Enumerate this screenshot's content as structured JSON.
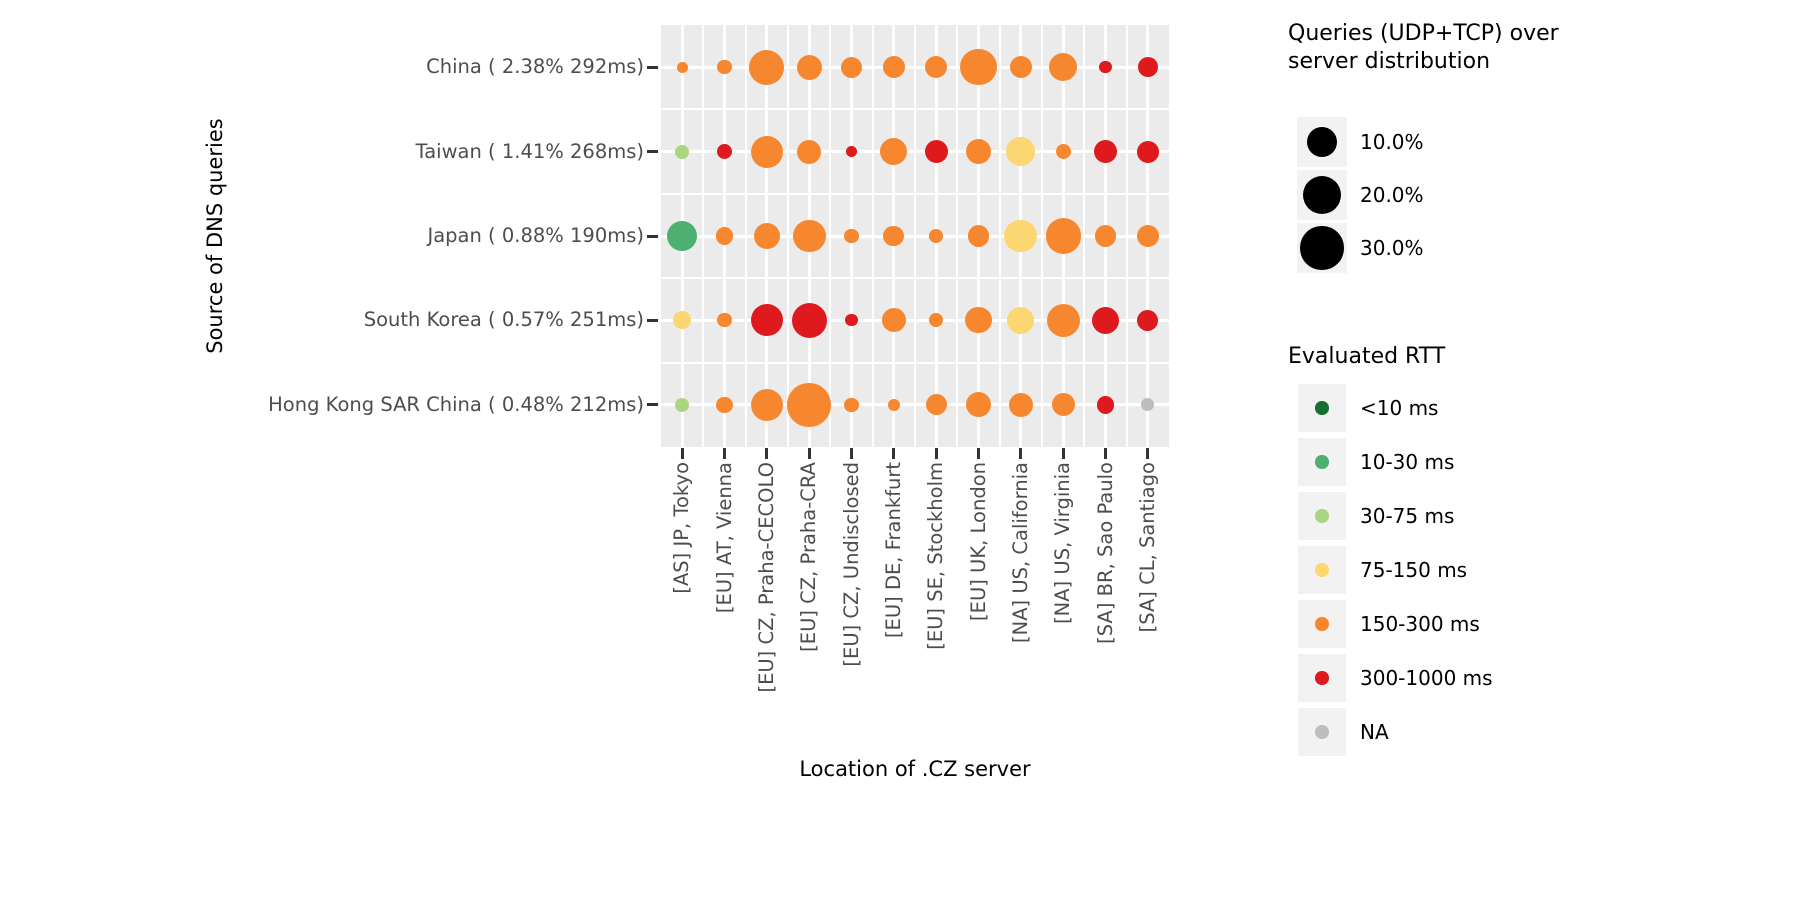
{
  "y_axis": {
    "title": "Source of DNS queries"
  },
  "x_axis": {
    "title": "Location of .CZ server"
  },
  "legend_size": {
    "title_line1": "Queries (UDP+TCP) over",
    "title_line2": "server distribution",
    "items": [
      {
        "label": "10.0%",
        "pct": 10
      },
      {
        "label": "20.0%",
        "pct": 20
      },
      {
        "label": "30.0%",
        "pct": 30
      }
    ]
  },
  "legend_rtt": {
    "title": "Evaluated RTT",
    "items": [
      {
        "label": "<10 ms",
        "bucket": "<10"
      },
      {
        "label": "10-30 ms",
        "bucket": "10-30"
      },
      {
        "label": "30-75 ms",
        "bucket": "30-75"
      },
      {
        "label": "75-150 ms",
        "bucket": "75-150"
      },
      {
        "label": "150-300 ms",
        "bucket": "150-300"
      },
      {
        "label": "300-1000 ms",
        "bucket": "300-1000"
      },
      {
        "label": "NA",
        "bucket": "NA"
      }
    ]
  },
  "colors": {
    "panel_bg": "#EBEBEB",
    "grid": "#FFFFFF",
    "tick": "#333333",
    "axis_text": "#4D4D4D",
    "legend_key_bg": "#F2F2F2",
    "rtt_buckets": {
      "<10": "#15702E",
      "10-30": "#4DAF70",
      "30-75": "#A9D680",
      "75-150": "#FCD671",
      "150-300": "#F7872F",
      "300-1000": "#DE1A1E",
      "NA": "#BDBDBD"
    }
  },
  "chart_data": {
    "type": "scatter",
    "subtype": "balloon-matrix",
    "note": "bubble size = % of queries (UDP+TCP) over server distribution; bubble color = evaluated RTT bucket",
    "x_categories": [
      "[AS] JP, Tokyo",
      "[EU] AT, Vienna",
      "[EU] CZ, Praha-CECOLO",
      "[EU] CZ, Praha-CRA",
      "[EU] CZ, Undisclosed",
      "[EU] DE, Frankfurt",
      "[EU] SE, Stockholm",
      "[EU] UK, London",
      "[NA] US, California",
      "[NA] US, Virginia",
      "[SA] BR, Sao Paulo",
      "[SA] CL, Santiago"
    ],
    "y_categories": [
      "China ( 2.38% 292ms)",
      "Taiwan ( 1.41% 268ms)",
      "Japan ( 0.88% 190ms)",
      "South Korea ( 0.57% 251ms)",
      "Hong Kong SAR China ( 0.48% 212ms)"
    ],
    "size_pct": [
      [
        0.5,
        1.1,
        15.8,
        5.9,
        3.5,
        4.0,
        4.0,
        17.2,
        4.0,
        8.2,
        0.7,
        3.0
      ],
      [
        1.1,
        1.3,
        12.1,
        5.2,
        0.5,
        7.4,
        4.6,
        5.9,
        9.0,
        1.3,
        4.6,
        4.0
      ],
      [
        10.0,
        1.9,
        6.6,
        13.2,
        1.3,
        3.5,
        1.1,
        4.0,
        13.2,
        15.8,
        4.0,
        4.0
      ],
      [
        2.2,
        1.1,
        12.1,
        15.8,
        0.7,
        5.2,
        1.1,
        6.6,
        7.4,
        13.2,
        7.4,
        3.5
      ],
      [
        1.1,
        1.6,
        12.1,
        30.0,
        1.1,
        0.7,
        3.5,
        5.9,
        5.2,
        4.6,
        2.2,
        0.8
      ]
    ],
    "rtt_bucket": [
      [
        "150-300",
        "150-300",
        "150-300",
        "150-300",
        "150-300",
        "150-300",
        "150-300",
        "150-300",
        "150-300",
        "150-300",
        "300-1000",
        "300-1000"
      ],
      [
        "30-75",
        "300-1000",
        "150-300",
        "150-300",
        "300-1000",
        "150-300",
        "300-1000",
        "150-300",
        "75-150",
        "150-300",
        "300-1000",
        "300-1000"
      ],
      [
        "10-30",
        "150-300",
        "150-300",
        "150-300",
        "150-300",
        "150-300",
        "150-300",
        "150-300",
        "75-150",
        "150-300",
        "150-300",
        "150-300"
      ],
      [
        "75-150",
        "150-300",
        "300-1000",
        "300-1000",
        "300-1000",
        "150-300",
        "150-300",
        "150-300",
        "75-150",
        "150-300",
        "300-1000",
        "300-1000"
      ],
      [
        "30-75",
        "150-300",
        "150-300",
        "150-300",
        "150-300",
        "150-300",
        "150-300",
        "150-300",
        "150-300",
        "150-300",
        "300-1000",
        "NA"
      ]
    ]
  }
}
